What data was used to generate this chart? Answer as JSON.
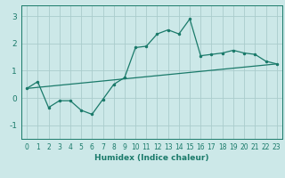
{
  "title": "",
  "xlabel": "Humidex (Indice chaleur)",
  "bg_color": "#cce8e8",
  "grid_color": "#aacccc",
  "line_color": "#1a7a6a",
  "xlim": [
    -0.5,
    23.5
  ],
  "ylim": [
    -1.5,
    3.4
  ],
  "xticks": [
    0,
    1,
    2,
    3,
    4,
    5,
    6,
    7,
    8,
    9,
    10,
    11,
    12,
    13,
    14,
    15,
    16,
    17,
    18,
    19,
    20,
    21,
    22,
    23
  ],
  "yticks": [
    -1,
    0,
    1,
    2,
    3
  ],
  "series1_x": [
    0,
    1,
    2,
    3,
    4,
    5,
    6,
    7,
    8,
    9,
    10,
    11,
    12,
    13,
    14,
    15,
    16,
    17,
    18,
    19,
    20,
    21,
    22,
    23
  ],
  "series1_y": [
    0.35,
    0.6,
    -0.35,
    -0.1,
    -0.1,
    -0.45,
    -0.6,
    -0.05,
    0.5,
    0.75,
    1.85,
    1.9,
    2.35,
    2.5,
    2.35,
    2.9,
    1.55,
    1.6,
    1.65,
    1.75,
    1.65,
    1.6,
    1.35,
    1.25
  ],
  "series2_x": [
    0,
    23
  ],
  "series2_y": [
    0.35,
    1.25
  ],
  "tick_fontsize": 5.5,
  "xlabel_fontsize": 6.5
}
